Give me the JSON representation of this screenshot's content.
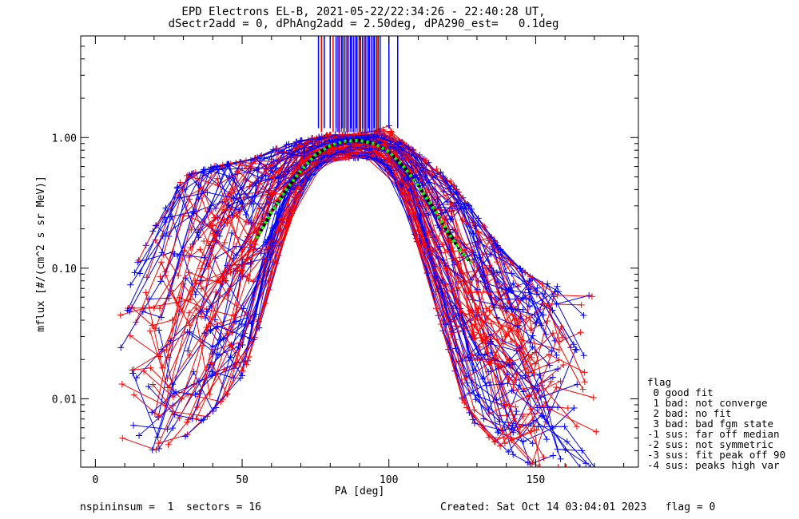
{
  "chart_data": {
    "type": "line",
    "title": "EPD Electrons EL-B, 2021-05-22/22:34:26 - 22:40:28 UT,",
    "subtitle": "dSectr2add = 0, dPhAng2add = 2.50deg, dPA290_est=   0.1deg",
    "xlabel": "PA [deg]",
    "ylabel": "mflux [#/(cm^2 s sr MeV)]",
    "xlim": [
      -5,
      185
    ],
    "ylim": [
      0.003,
      6
    ],
    "yscale": "log",
    "x_ticks": [
      0,
      50,
      100,
      150
    ],
    "x_tick_labels": [
      "0",
      "50",
      "100",
      "150"
    ],
    "y_ticks": [
      0.01,
      0.1,
      1.0
    ],
    "y_tick_labels": [
      "0.01",
      "0.10",
      "1.00"
    ],
    "grid": false,
    "series_colors": {
      "red": "#ff0000",
      "blue": "#0000ff",
      "fit": "#00ff00",
      "fit_outline": "#000000"
    },
    "fit_curve": {
      "x": [
        55,
        60,
        65,
        70,
        75,
        80,
        85,
        90,
        95,
        100,
        105,
        110,
        115,
        120,
        125,
        128
      ],
      "y": [
        0.17,
        0.27,
        0.4,
        0.56,
        0.74,
        0.87,
        0.94,
        0.95,
        0.9,
        0.78,
        0.6,
        0.43,
        0.29,
        0.19,
        0.13,
        0.11
      ]
    },
    "peak_markers": {
      "red_x": [
        77,
        81,
        83,
        86,
        88,
        90,
        92,
        94,
        96
      ],
      "blue_x": [
        76,
        78,
        80,
        82,
        84,
        85,
        87,
        89,
        91,
        93,
        95,
        97,
        100,
        103
      ]
    },
    "profile_envelope": {
      "x": [
        10,
        20,
        30,
        40,
        50,
        55,
        60,
        65,
        70,
        75,
        80,
        85,
        90,
        95,
        100,
        105,
        110,
        115,
        120,
        125,
        130,
        140,
        150,
        160,
        170
      ],
      "upper": [
        0.07,
        0.2,
        0.5,
        0.6,
        0.65,
        0.7,
        0.8,
        0.88,
        0.95,
        1.0,
        1.05,
        1.05,
        1.05,
        1.05,
        1.25,
        0.9,
        0.75,
        0.6,
        0.5,
        0.35,
        0.25,
        0.12,
        0.08,
        0.07,
        0.06
      ],
      "lower": [
        0.005,
        0.004,
        0.005,
        0.008,
        0.015,
        0.03,
        0.08,
        0.2,
        0.4,
        0.6,
        0.7,
        0.7,
        0.7,
        0.7,
        0.6,
        0.35,
        0.15,
        0.06,
        0.025,
        0.01,
        0.006,
        0.004,
        0.003,
        0.003,
        0.003
      ]
    }
  },
  "legend": {
    "title": "flag",
    "items": [
      " 0 good fit",
      " 1 bad: not converge",
      " 2 bad: no fit",
      " 3 bad: bad fgm state",
      "-1 sus: far off median",
      "-2 sus: not symmetric",
      "-3 sus: fit peak off 90",
      "-4 sus: peaks high var"
    ]
  },
  "footer": {
    "left": "nspininsum =  1  sectors = 16",
    "right": "Created: Sat Oct 14 03:04:01 2023   flag = 0"
  }
}
